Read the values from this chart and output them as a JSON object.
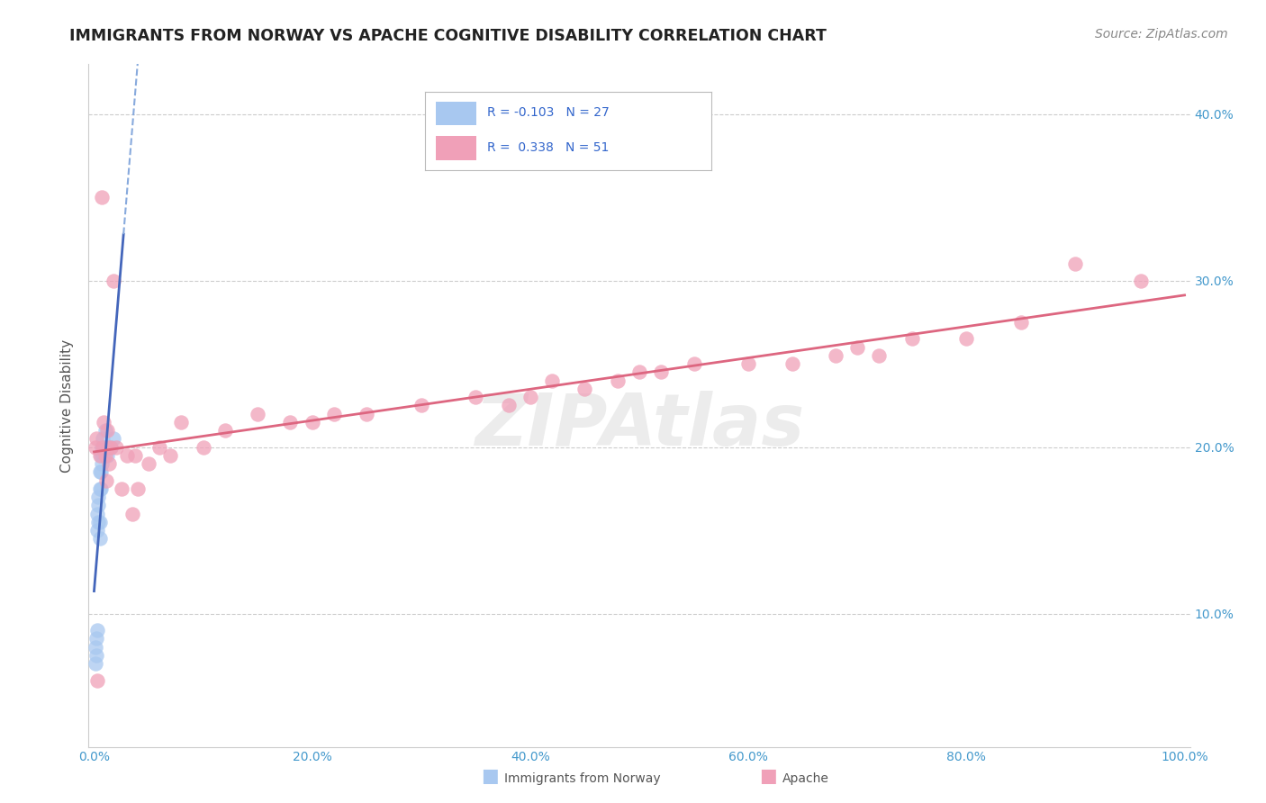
{
  "title": "IMMIGRANTS FROM NORWAY VS APACHE COGNITIVE DISABILITY CORRELATION CHART",
  "source": "Source: ZipAtlas.com",
  "ylabel": "Cognitive Disability",
  "watermark": "ZIPAtlas",
  "legend_R_norway": "-0.103",
  "legend_N_norway": "27",
  "legend_R_apache": "0.338",
  "legend_N_apache": "51",
  "xlim": [
    -0.005,
    1.005
  ],
  "ylim": [
    0.02,
    0.43
  ],
  "xticks": [
    0.0,
    0.2,
    0.4,
    0.6,
    0.8,
    1.0
  ],
  "yticks": [
    0.1,
    0.2,
    0.3,
    0.4
  ],
  "ytick_labels": [
    "10.0%",
    "20.0%",
    "30.0%",
    "40.0%"
  ],
  "xtick_labels": [
    "0.0%",
    "20.0%",
    "40.0%",
    "60.0%",
    "80.0%",
    "100.0%"
  ],
  "color_norway": "#a8c8f0",
  "color_apache": "#f0a0b8",
  "trendline_norway_solid_color": "#4466bb",
  "trendline_norway_dash_color": "#88aadd",
  "trendline_apache_color": "#dd6680",
  "grid_color": "#cccccc",
  "bg_color": "#ffffff",
  "norway_x": [
    0.001,
    0.001,
    0.002,
    0.002,
    0.003,
    0.003,
    0.003,
    0.004,
    0.004,
    0.004,
    0.005,
    0.005,
    0.005,
    0.005,
    0.006,
    0.006,
    0.006,
    0.007,
    0.007,
    0.008,
    0.008,
    0.009,
    0.01,
    0.011,
    0.012,
    0.015,
    0.018
  ],
  "norway_y": [
    0.07,
    0.08,
    0.075,
    0.085,
    0.09,
    0.15,
    0.16,
    0.155,
    0.165,
    0.17,
    0.145,
    0.155,
    0.175,
    0.185,
    0.175,
    0.185,
    0.195,
    0.19,
    0.2,
    0.195,
    0.205,
    0.2,
    0.21,
    0.2,
    0.195,
    0.2,
    0.205
  ],
  "apache_x": [
    0.001,
    0.002,
    0.003,
    0.005,
    0.007,
    0.008,
    0.009,
    0.01,
    0.011,
    0.012,
    0.013,
    0.014,
    0.015,
    0.018,
    0.02,
    0.025,
    0.03,
    0.035,
    0.038,
    0.04,
    0.05,
    0.06,
    0.07,
    0.08,
    0.1,
    0.12,
    0.15,
    0.18,
    0.2,
    0.22,
    0.25,
    0.3,
    0.35,
    0.38,
    0.4,
    0.42,
    0.45,
    0.48,
    0.5,
    0.52,
    0.55,
    0.6,
    0.64,
    0.68,
    0.7,
    0.72,
    0.75,
    0.8,
    0.85,
    0.9,
    0.96
  ],
  "apache_y": [
    0.2,
    0.205,
    0.06,
    0.195,
    0.35,
    0.2,
    0.215,
    0.195,
    0.18,
    0.21,
    0.2,
    0.19,
    0.2,
    0.3,
    0.2,
    0.175,
    0.195,
    0.16,
    0.195,
    0.175,
    0.19,
    0.2,
    0.195,
    0.215,
    0.2,
    0.21,
    0.22,
    0.215,
    0.215,
    0.22,
    0.22,
    0.225,
    0.23,
    0.225,
    0.23,
    0.24,
    0.235,
    0.24,
    0.245,
    0.245,
    0.25,
    0.25,
    0.25,
    0.255,
    0.26,
    0.255,
    0.265,
    0.265,
    0.275,
    0.31,
    0.3
  ]
}
